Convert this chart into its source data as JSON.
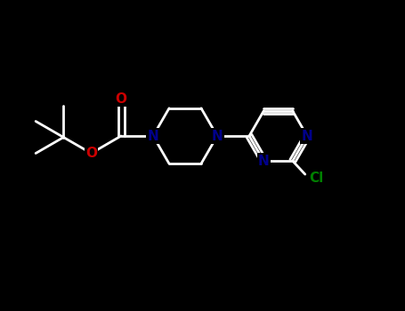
{
  "background_color": "#000000",
  "N_color": "#00008B",
  "O_color": "#CC0000",
  "Cl_color": "#008000",
  "line_width": 2.0,
  "font_size": 11,
  "figsize": [
    4.55,
    3.5
  ],
  "dpi": 100,
  "xlim": [
    0,
    9.1
  ],
  "ylim": [
    0,
    7.0
  ]
}
